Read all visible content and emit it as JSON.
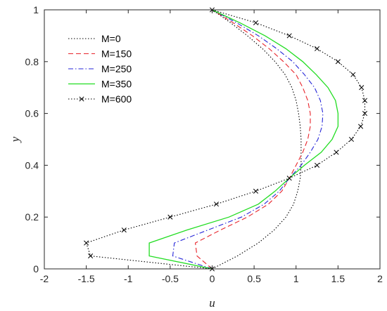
{
  "chart_data": {
    "type": "line",
    "title": "",
    "xlabel": "u",
    "ylabel": "y",
    "xlim": [
      -2,
      2
    ],
    "ylim": [
      0,
      1
    ],
    "xticks": [
      "-2",
      "-1.5",
      "-1",
      "-0.5",
      "0",
      "0.5",
      "1",
      "1.5",
      "2"
    ],
    "yticks": [
      "0",
      "0.2",
      "0.4",
      "0.6",
      "0.8",
      "1"
    ],
    "xtick_values": [
      -2,
      -1.5,
      -1,
      -0.5,
      0,
      0.5,
      1,
      1.5,
      2
    ],
    "ytick_values": [
      0,
      0.2,
      0.4,
      0.6,
      0.8,
      1
    ],
    "grid": false,
    "legend_position": "top-left",
    "series": [
      {
        "name": "M=0",
        "color": "#000000",
        "style": "dotted",
        "marker": "none",
        "points": [
          [
            0,
            0
          ],
          [
            0.3,
            0.05
          ],
          [
            0.55,
            0.1
          ],
          [
            0.74,
            0.15
          ],
          [
            0.88,
            0.2
          ],
          [
            0.97,
            0.25
          ],
          [
            1.02,
            0.3
          ],
          [
            1.05,
            0.35
          ],
          [
            1.06,
            0.4
          ],
          [
            1.06,
            0.45
          ],
          [
            1.06,
            0.5
          ],
          [
            1.05,
            0.55
          ],
          [
            1.03,
            0.6
          ],
          [
            1.0,
            0.65
          ],
          [
            0.95,
            0.7
          ],
          [
            0.87,
            0.75
          ],
          [
            0.75,
            0.8
          ],
          [
            0.6,
            0.85
          ],
          [
            0.42,
            0.9
          ],
          [
            0.22,
            0.95
          ],
          [
            0,
            1
          ]
        ]
      },
      {
        "name": "M=150",
        "color": "#e8242b",
        "style": "dashed",
        "marker": "none",
        "points": [
          [
            0,
            0
          ],
          [
            -0.18,
            0.05
          ],
          [
            -0.2,
            0.1
          ],
          [
            0.1,
            0.15
          ],
          [
            0.42,
            0.2
          ],
          [
            0.67,
            0.25
          ],
          [
            0.83,
            0.3
          ],
          [
            0.92,
            0.35
          ],
          [
            1.0,
            0.4
          ],
          [
            1.08,
            0.45
          ],
          [
            1.14,
            0.5
          ],
          [
            1.17,
            0.55
          ],
          [
            1.17,
            0.6
          ],
          [
            1.14,
            0.65
          ],
          [
            1.08,
            0.7
          ],
          [
            1.0,
            0.75
          ],
          [
            0.85,
            0.8
          ],
          [
            0.68,
            0.85
          ],
          [
            0.48,
            0.9
          ],
          [
            0.25,
            0.95
          ],
          [
            0,
            1
          ]
        ]
      },
      {
        "name": "M=250",
        "color": "#2424d8",
        "style": "dashdot",
        "marker": "none",
        "points": [
          [
            0,
            0
          ],
          [
            -0.47,
            0.05
          ],
          [
            -0.45,
            0.1
          ],
          [
            -0.05,
            0.15
          ],
          [
            0.35,
            0.2
          ],
          [
            0.62,
            0.25
          ],
          [
            0.8,
            0.3
          ],
          [
            0.92,
            0.35
          ],
          [
            1.06,
            0.4
          ],
          [
            1.17,
            0.45
          ],
          [
            1.26,
            0.5
          ],
          [
            1.31,
            0.55
          ],
          [
            1.32,
            0.6
          ],
          [
            1.29,
            0.65
          ],
          [
            1.22,
            0.7
          ],
          [
            1.1,
            0.75
          ],
          [
            0.96,
            0.8
          ],
          [
            0.77,
            0.85
          ],
          [
            0.55,
            0.9
          ],
          [
            0.29,
            0.95
          ],
          [
            0,
            1
          ]
        ]
      },
      {
        "name": "M=350",
        "color": "#22dd22",
        "style": "solid",
        "marker": "none",
        "points": [
          [
            0,
            0
          ],
          [
            -0.75,
            0.05
          ],
          [
            -0.75,
            0.1
          ],
          [
            -0.3,
            0.15
          ],
          [
            0.2,
            0.2
          ],
          [
            0.55,
            0.25
          ],
          [
            0.75,
            0.3
          ],
          [
            0.92,
            0.35
          ],
          [
            1.1,
            0.4
          ],
          [
            1.3,
            0.45
          ],
          [
            1.43,
            0.5
          ],
          [
            1.5,
            0.55
          ],
          [
            1.5,
            0.6
          ],
          [
            1.47,
            0.65
          ],
          [
            1.38,
            0.7
          ],
          [
            1.24,
            0.75
          ],
          [
            1.08,
            0.8
          ],
          [
            0.88,
            0.85
          ],
          [
            0.63,
            0.9
          ],
          [
            0.33,
            0.95
          ],
          [
            0,
            1
          ]
        ]
      },
      {
        "name": "M=600",
        "color": "#000000",
        "style": "dotted",
        "marker": "x",
        "points": [
          [
            0,
            0
          ],
          [
            -1.45,
            0.05
          ],
          [
            -1.5,
            0.1
          ],
          [
            -1.05,
            0.15
          ],
          [
            -0.5,
            0.2
          ],
          [
            0.05,
            0.25
          ],
          [
            0.52,
            0.3
          ],
          [
            0.92,
            0.35
          ],
          [
            1.25,
            0.4
          ],
          [
            1.48,
            0.45
          ],
          [
            1.66,
            0.5
          ],
          [
            1.77,
            0.55
          ],
          [
            1.82,
            0.6
          ],
          [
            1.82,
            0.65
          ],
          [
            1.78,
            0.7
          ],
          [
            1.68,
            0.75
          ],
          [
            1.5,
            0.8
          ],
          [
            1.25,
            0.85
          ],
          [
            0.92,
            0.9
          ],
          [
            0.52,
            0.95
          ],
          [
            0,
            1
          ]
        ]
      }
    ]
  }
}
